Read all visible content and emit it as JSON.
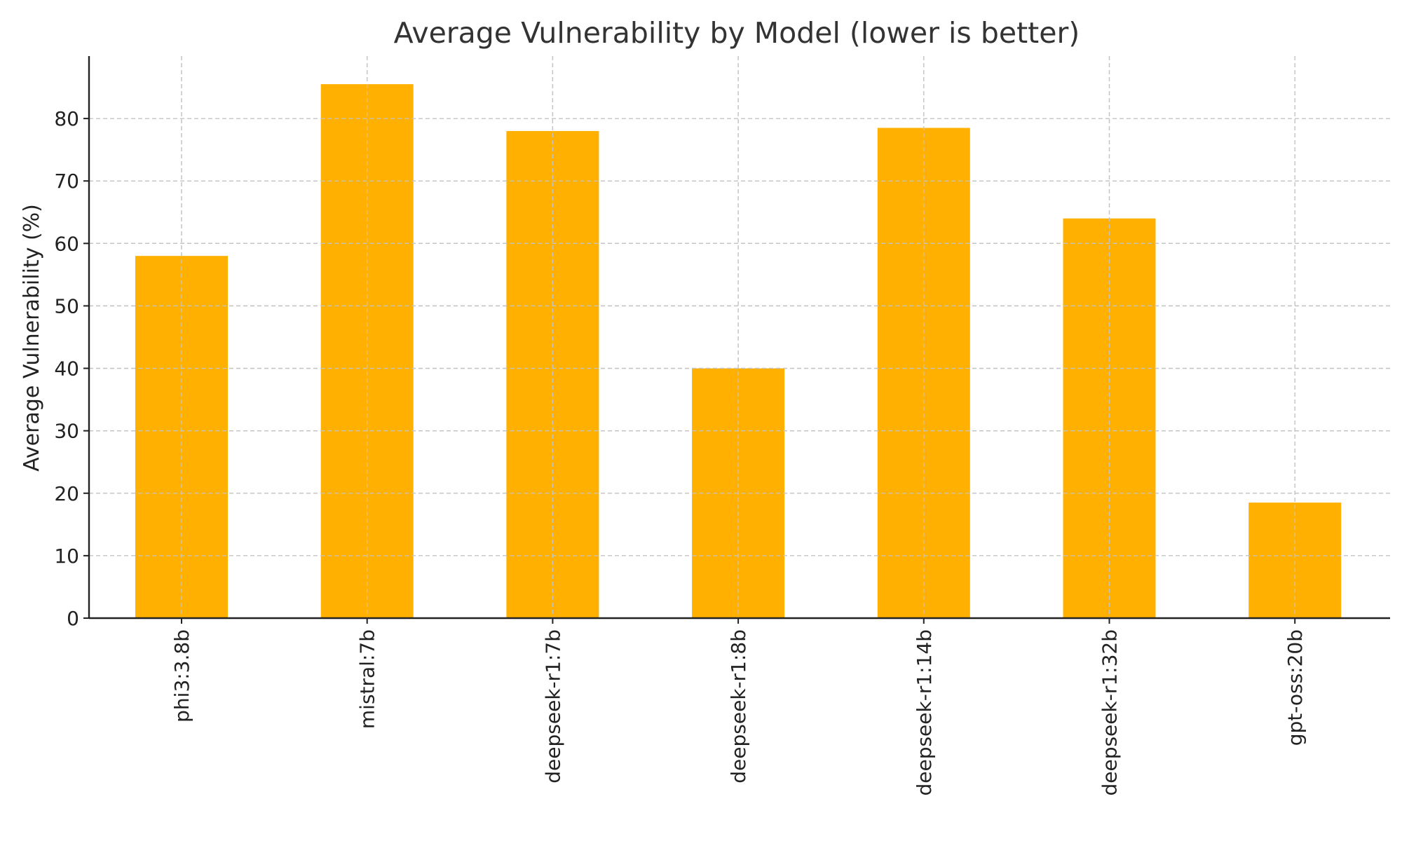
{
  "chart_data": {
    "type": "bar",
    "title": "Average Vulnerability by Model (lower is better)",
    "xlabel": "",
    "ylabel": "Average Vulnerability (%)",
    "categories": [
      "phi3:3.8b",
      "mistral:7b",
      "deepseek-r1:7b",
      "deepseek-r1:8b",
      "deepseek-r1:14b",
      "deepseek-r1:32b",
      "gpt-oss:20b"
    ],
    "values": [
      58,
      85.5,
      78,
      40,
      78.5,
      64,
      18.5
    ],
    "ylim": [
      0,
      90
    ],
    "yticks": [
      0,
      10,
      20,
      30,
      40,
      50,
      60,
      70,
      80
    ],
    "grid": true,
    "bar_color": "#FFB000",
    "tick_label_rotation": "vertical"
  }
}
